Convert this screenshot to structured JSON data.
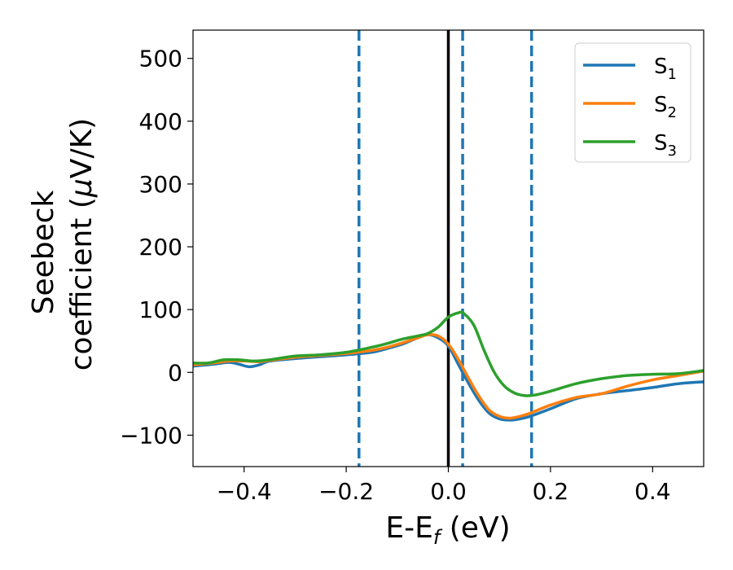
{
  "chart_data": {
    "type": "line",
    "title": "",
    "xlabel": {
      "main": "E-E",
      "sub": "f",
      "suffix": " (eV)"
    },
    "ylabel": {
      "line1": "Seebeck",
      "line2_pre": "coefficient  (",
      "line2_mu": "μ",
      "line2_post": "V/K)"
    },
    "xlim": [
      -0.5,
      0.5
    ],
    "ylim": [
      -150,
      545
    ],
    "xticks": [
      -0.4,
      -0.2,
      0.0,
      0.2,
      0.4
    ],
    "xtick_labels": [
      "−0.4",
      "−0.2",
      "0.0",
      "0.2",
      "0.4"
    ],
    "yticks": [
      -100,
      0,
      100,
      200,
      300,
      400,
      500
    ],
    "ytick_labels": [
      "−100",
      "0",
      "100",
      "200",
      "300",
      "400",
      "500"
    ],
    "grid": false,
    "legend_position": "top-right",
    "vertical_lines": [
      {
        "x": -0.175,
        "style": "dashed",
        "color": "#1f77b4"
      },
      {
        "x": 0.0,
        "style": "solid",
        "color": "#000000"
      },
      {
        "x": 0.028,
        "style": "dashed",
        "color": "#1f77b4"
      },
      {
        "x": 0.163,
        "style": "dashed",
        "color": "#1f77b4"
      }
    ],
    "series": [
      {
        "name": "S",
        "sub": "1",
        "color": "#1f77b4",
        "x": [
          -0.5,
          -0.46,
          -0.43,
          -0.41,
          -0.39,
          -0.37,
          -0.35,
          -0.3,
          -0.25,
          -0.2,
          -0.15,
          -0.12,
          -0.09,
          -0.06,
          -0.04,
          -0.02,
          0.0,
          0.02,
          0.04,
          0.06,
          0.08,
          0.1,
          0.12,
          0.14,
          0.16,
          0.2,
          0.25,
          0.3,
          0.35,
          0.4,
          0.45,
          0.5
        ],
        "y": [
          10,
          13,
          16,
          13,
          9,
          12,
          18,
          22,
          25,
          28,
          32,
          38,
          45,
          55,
          60,
          55,
          42,
          12,
          -18,
          -45,
          -65,
          -74,
          -76,
          -74,
          -70,
          -58,
          -42,
          -34,
          -29,
          -24,
          -18,
          -15
        ]
      },
      {
        "name": "S",
        "sub": "2",
        "color": "#ff7f0e",
        "x": [
          -0.5,
          -0.46,
          -0.43,
          -0.4,
          -0.37,
          -0.35,
          -0.3,
          -0.25,
          -0.2,
          -0.15,
          -0.12,
          -0.09,
          -0.06,
          -0.04,
          -0.02,
          0.0,
          0.02,
          0.04,
          0.06,
          0.08,
          0.1,
          0.12,
          0.14,
          0.16,
          0.2,
          0.25,
          0.3,
          0.35,
          0.4,
          0.45,
          0.5
        ],
        "y": [
          12,
          15,
          18,
          18,
          17,
          19,
          24,
          27,
          30,
          35,
          40,
          47,
          55,
          60,
          58,
          45,
          20,
          -10,
          -38,
          -60,
          -70,
          -73,
          -70,
          -65,
          -52,
          -40,
          -34,
          -22,
          -12,
          -5,
          2
        ]
      },
      {
        "name": "S",
        "sub": "3",
        "color": "#2ca02c",
        "x": [
          -0.5,
          -0.47,
          -0.44,
          -0.41,
          -0.38,
          -0.35,
          -0.3,
          -0.25,
          -0.2,
          -0.15,
          -0.12,
          -0.09,
          -0.06,
          -0.04,
          -0.02,
          0.0,
          0.02,
          0.03,
          0.05,
          0.07,
          0.09,
          0.11,
          0.13,
          0.15,
          0.17,
          0.2,
          0.25,
          0.3,
          0.35,
          0.4,
          0.45,
          0.5
        ],
        "y": [
          15,
          15,
          20,
          20,
          18,
          20,
          26,
          28,
          32,
          40,
          46,
          53,
          58,
          62,
          72,
          88,
          95,
          94,
          75,
          35,
          0,
          -22,
          -33,
          -37,
          -36,
          -30,
          -18,
          -10,
          -5,
          -3,
          -2,
          3
        ]
      }
    ]
  }
}
